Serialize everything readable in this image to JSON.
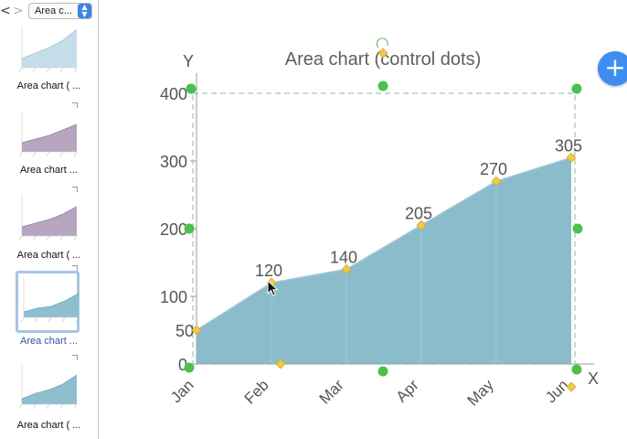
{
  "sidebar": {
    "nav": {
      "prev": "<",
      "next": ">"
    },
    "select_value": "Area c...",
    "items": [
      {
        "label": "Area chart ( ...",
        "style": "light"
      },
      {
        "label": "Area chart  ...",
        "style": "purple"
      },
      {
        "label": "Area chart ( ...",
        "style": "purple"
      },
      {
        "label": "Area chart  ...",
        "style": "teal",
        "selected": true
      },
      {
        "label": "Area chart ( ...",
        "style": "teal"
      }
    ]
  },
  "fab": {
    "label": "+"
  },
  "chart_data": {
    "type": "area",
    "title": "Area chart (control dots)",
    "xlabel": "X",
    "ylabel": "Y",
    "categories": [
      "Jan",
      "Feb",
      "Mar",
      "Apr",
      "May",
      "Jun"
    ],
    "values": [
      50,
      120,
      140,
      205,
      270,
      305
    ],
    "data_labels": [
      "50",
      "120",
      "140",
      "205",
      "270",
      "305"
    ],
    "yticks": [
      0,
      100,
      200,
      300,
      400
    ],
    "ylim": [
      0,
      400
    ],
    "grid": false,
    "colors": {
      "area": "#8bbccb",
      "area_line": "#9ec8d5",
      "handle": "#f0c94a",
      "control_dot": "#4cc04c",
      "selection": "#8bb8a0",
      "axis": "#999999"
    }
  }
}
